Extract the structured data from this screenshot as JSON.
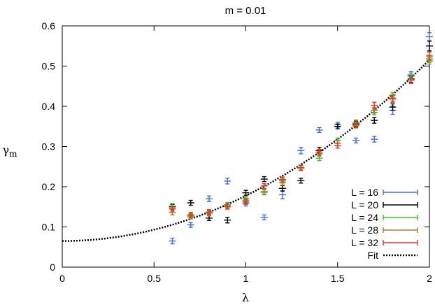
{
  "chart_data": {
    "type": "scatter",
    "title": "m = 0.01",
    "xlabel": "λ",
    "ylabel_main": "γ",
    "ylabel_sub": "m",
    "xlim": [
      0,
      2
    ],
    "ylim": [
      0,
      0.6
    ],
    "xticks": [
      0,
      0.5,
      1,
      1.5,
      2
    ],
    "xtick_labels": [
      "0",
      "0.5",
      "1",
      "1.5",
      "2"
    ],
    "yticks": [
      0,
      0.1,
      0.2,
      0.3,
      0.4,
      0.5,
      0.6
    ],
    "ytick_labels": [
      "0",
      "0.1",
      "0.2",
      "0.3",
      "0.4",
      "0.5",
      "0.6"
    ],
    "legend_position": "bottom-right",
    "series": [
      {
        "name": "L = 16",
        "color": "#3d6fe0",
        "points": [
          {
            "x": 0.6,
            "y": 0.065,
            "err": 0.007
          },
          {
            "x": 0.7,
            "y": 0.105,
            "err": 0.006
          },
          {
            "x": 0.8,
            "y": 0.17,
            "err": 0.007
          },
          {
            "x": 0.9,
            "y": 0.214,
            "err": 0.007
          },
          {
            "x": 1.0,
            "y": 0.158,
            "err": 0.006
          },
          {
            "x": 1.1,
            "y": 0.124,
            "err": 0.006
          },
          {
            "x": 1.2,
            "y": 0.18,
            "err": 0.01
          },
          {
            "x": 1.3,
            "y": 0.29,
            "err": 0.008
          },
          {
            "x": 1.4,
            "y": 0.341,
            "err": 0.006
          },
          {
            "x": 1.5,
            "y": 0.354,
            "err": 0.006
          },
          {
            "x": 1.6,
            "y": 0.315,
            "err": 0.006
          },
          {
            "x": 1.7,
            "y": 0.318,
            "err": 0.007
          },
          {
            "x": 1.8,
            "y": 0.39,
            "err": 0.01
          },
          {
            "x": 1.9,
            "y": 0.478,
            "err": 0.008
          },
          {
            "x": 2.0,
            "y": 0.573,
            "err": 0.01
          }
        ]
      },
      {
        "name": "L = 20",
        "color": "#000000",
        "points": [
          {
            "x": 0.6,
            "y": 0.15,
            "err": 0.006
          },
          {
            "x": 0.7,
            "y": 0.16,
            "err": 0.006
          },
          {
            "x": 0.8,
            "y": 0.122,
            "err": 0.006
          },
          {
            "x": 0.9,
            "y": 0.117,
            "err": 0.007
          },
          {
            "x": 1.0,
            "y": 0.185,
            "err": 0.006
          },
          {
            "x": 1.1,
            "y": 0.219,
            "err": 0.006
          },
          {
            "x": 1.2,
            "y": 0.196,
            "err": 0.007
          },
          {
            "x": 1.3,
            "y": 0.215,
            "err": 0.006
          },
          {
            "x": 1.4,
            "y": 0.29,
            "err": 0.008
          },
          {
            "x": 1.5,
            "y": 0.35,
            "err": 0.006
          },
          {
            "x": 1.6,
            "y": 0.355,
            "err": 0.007
          },
          {
            "x": 1.7,
            "y": 0.365,
            "err": 0.007
          },
          {
            "x": 1.8,
            "y": 0.398,
            "err": 0.008
          },
          {
            "x": 1.9,
            "y": 0.468,
            "err": 0.008
          },
          {
            "x": 2.0,
            "y": 0.55,
            "err": 0.012
          }
        ]
      },
      {
        "name": "L = 24",
        "color": "#3bbf29",
        "points": [
          {
            "x": 0.6,
            "y": 0.152,
            "err": 0.006
          },
          {
            "x": 0.7,
            "y": 0.128,
            "err": 0.006
          },
          {
            "x": 0.8,
            "y": 0.137,
            "err": 0.005
          },
          {
            "x": 0.9,
            "y": 0.155,
            "err": 0.006
          },
          {
            "x": 1.0,
            "y": 0.17,
            "err": 0.006
          },
          {
            "x": 1.1,
            "y": 0.188,
            "err": 0.006
          },
          {
            "x": 1.2,
            "y": 0.215,
            "err": 0.006
          },
          {
            "x": 1.3,
            "y": 0.248,
            "err": 0.006
          },
          {
            "x": 1.4,
            "y": 0.271,
            "err": 0.006
          },
          {
            "x": 1.5,
            "y": 0.315,
            "err": 0.006
          },
          {
            "x": 1.6,
            "y": 0.36,
            "err": 0.006
          },
          {
            "x": 1.7,
            "y": 0.385,
            "err": 0.006
          },
          {
            "x": 1.8,
            "y": 0.428,
            "err": 0.006
          },
          {
            "x": 1.9,
            "y": 0.475,
            "err": 0.007
          },
          {
            "x": 2.0,
            "y": 0.513,
            "err": 0.008
          }
        ]
      },
      {
        "name": "L = 28",
        "color": "#b07a2a",
        "points": [
          {
            "x": 0.6,
            "y": 0.136,
            "err": 0.006
          },
          {
            "x": 0.7,
            "y": 0.126,
            "err": 0.006
          },
          {
            "x": 0.8,
            "y": 0.134,
            "err": 0.006
          },
          {
            "x": 0.9,
            "y": 0.15,
            "err": 0.006
          },
          {
            "x": 1.0,
            "y": 0.166,
            "err": 0.006
          },
          {
            "x": 1.1,
            "y": 0.186,
            "err": 0.006
          },
          {
            "x": 1.2,
            "y": 0.21,
            "err": 0.006
          },
          {
            "x": 1.3,
            "y": 0.246,
            "err": 0.006
          },
          {
            "x": 1.4,
            "y": 0.282,
            "err": 0.006
          },
          {
            "x": 1.5,
            "y": 0.308,
            "err": 0.006
          },
          {
            "x": 1.6,
            "y": 0.352,
            "err": 0.006
          },
          {
            "x": 1.7,
            "y": 0.39,
            "err": 0.007
          },
          {
            "x": 1.8,
            "y": 0.42,
            "err": 0.007
          },
          {
            "x": 1.9,
            "y": 0.466,
            "err": 0.008
          },
          {
            "x": 2.0,
            "y": 0.518,
            "err": 0.009
          }
        ]
      },
      {
        "name": "L = 32",
        "color": "#e8312a",
        "points": [
          {
            "x": 0.6,
            "y": 0.145,
            "err": 0.006
          },
          {
            "x": 0.7,
            "y": 0.13,
            "err": 0.006
          },
          {
            "x": 0.8,
            "y": 0.137,
            "err": 0.006
          },
          {
            "x": 0.9,
            "y": 0.152,
            "err": 0.006
          },
          {
            "x": 1.0,
            "y": 0.162,
            "err": 0.006
          },
          {
            "x": 1.1,
            "y": 0.202,
            "err": 0.006
          },
          {
            "x": 1.2,
            "y": 0.218,
            "err": 0.006
          },
          {
            "x": 1.3,
            "y": 0.247,
            "err": 0.006
          },
          {
            "x": 1.4,
            "y": 0.286,
            "err": 0.007
          },
          {
            "x": 1.5,
            "y": 0.302,
            "err": 0.006
          },
          {
            "x": 1.6,
            "y": 0.357,
            "err": 0.007
          },
          {
            "x": 1.7,
            "y": 0.402,
            "err": 0.008
          },
          {
            "x": 1.8,
            "y": 0.418,
            "err": 0.008
          },
          {
            "x": 1.9,
            "y": 0.465,
            "err": 0.008
          },
          {
            "x": 2.0,
            "y": 0.525,
            "err": 0.01
          }
        ]
      }
    ],
    "fit": {
      "name": "Fit",
      "color": "#000000",
      "style": "dotted",
      "a": 0.065,
      "b": 0.1125,
      "exponent": 2
    }
  }
}
